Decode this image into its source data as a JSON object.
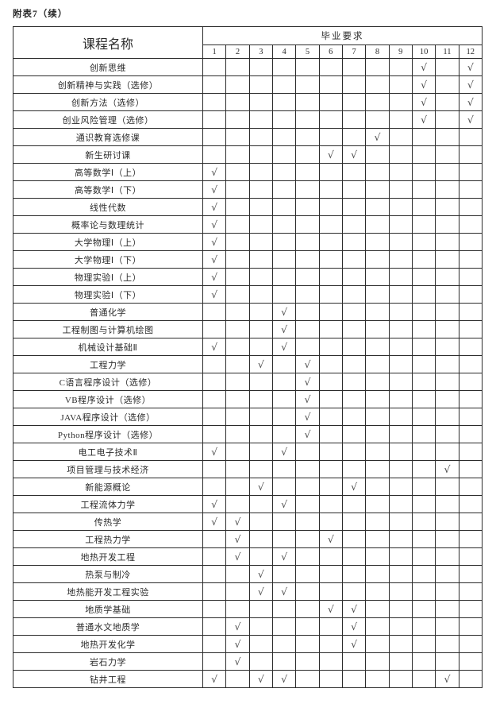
{
  "page": {
    "title": "附表7（续）"
  },
  "table": {
    "name_header": "课程名称",
    "group_header": "毕业要求",
    "columns": [
      "1",
      "2",
      "3",
      "4",
      "5",
      "6",
      "7",
      "8",
      "9",
      "10",
      "11",
      "12"
    ],
    "check_symbol": "√",
    "rows": [
      {
        "name": "创新思维",
        "checks": [
          10,
          12
        ]
      },
      {
        "name": "创新精神与实践（选修）",
        "checks": [
          10,
          12
        ]
      },
      {
        "name": "创新方法（选修）",
        "checks": [
          10,
          12
        ]
      },
      {
        "name": "创业风险管理（选修）",
        "checks": [
          10,
          12
        ]
      },
      {
        "name": "通识教育选修课",
        "checks": [
          8
        ]
      },
      {
        "name": "新生研讨课",
        "checks": [
          6,
          7
        ]
      },
      {
        "name": "高等数学Ⅰ（上）",
        "checks": [
          1
        ]
      },
      {
        "name": "高等数学Ⅰ（下）",
        "checks": [
          1
        ]
      },
      {
        "name": "线性代数",
        "checks": [
          1
        ]
      },
      {
        "name": "概率论与数理统计",
        "checks": [
          1
        ]
      },
      {
        "name": "大学物理Ⅰ（上）",
        "checks": [
          1
        ]
      },
      {
        "name": "大学物理Ⅰ（下）",
        "checks": [
          1
        ]
      },
      {
        "name": "物理实验Ⅰ（上）",
        "checks": [
          1
        ]
      },
      {
        "name": "物理实验Ⅰ（下）",
        "checks": [
          1
        ]
      },
      {
        "name": "普通化学",
        "checks": [
          4
        ]
      },
      {
        "name": "工程制图与计算机绘图",
        "checks": [
          4
        ]
      },
      {
        "name": "机械设计基础Ⅱ",
        "checks": [
          1,
          4
        ]
      },
      {
        "name": "工程力学",
        "checks": [
          3,
          5
        ]
      },
      {
        "name": "C语言程序设计（选修）",
        "checks": [
          5
        ]
      },
      {
        "name": "VB程序设计（选修）",
        "checks": [
          5
        ]
      },
      {
        "name": "JAVA程序设计（选修）",
        "checks": [
          5
        ]
      },
      {
        "name": "Python程序设计（选修）",
        "checks": [
          5
        ]
      },
      {
        "name": "电工电子技术Ⅱ",
        "checks": [
          1,
          4
        ]
      },
      {
        "name": "项目管理与技术经济",
        "checks": [
          11
        ]
      },
      {
        "name": "新能源概论",
        "checks": [
          3,
          7
        ]
      },
      {
        "name": "工程流体力学",
        "checks": [
          1,
          4
        ]
      },
      {
        "name": "传热学",
        "checks": [
          1,
          2
        ]
      },
      {
        "name": "工程热力学",
        "checks": [
          2,
          6
        ]
      },
      {
        "name": "地热开发工程",
        "checks": [
          2,
          4
        ]
      },
      {
        "name": "热泵与制冷",
        "checks": [
          3
        ]
      },
      {
        "name": "地热能开发工程实验",
        "checks": [
          3,
          4
        ]
      },
      {
        "name": "地质学基础",
        "checks": [
          6,
          7
        ]
      },
      {
        "name": "普通水文地质学",
        "checks": [
          2,
          7
        ]
      },
      {
        "name": "地热开发化学",
        "checks": [
          2,
          7
        ]
      },
      {
        "name": "岩石力学",
        "checks": [
          2
        ]
      },
      {
        "name": "钻井工程",
        "checks": [
          1,
          3,
          4,
          11
        ]
      }
    ]
  },
  "colors": {
    "border": "#2b2b2b",
    "text": "#2b2b2b",
    "check": "#4b4b4b",
    "background": "#ffffff"
  }
}
